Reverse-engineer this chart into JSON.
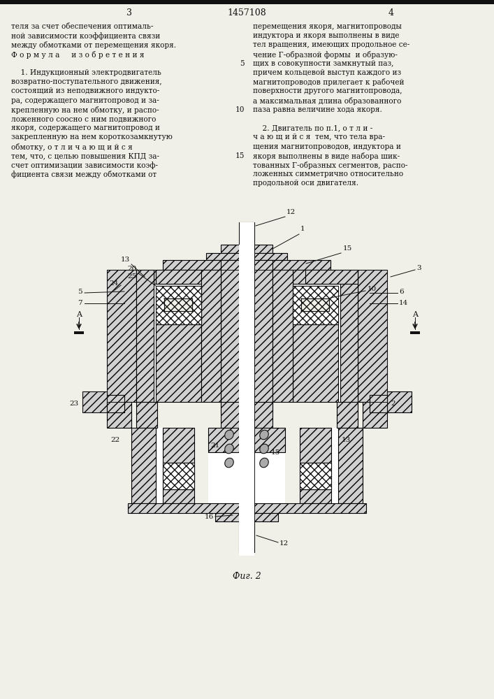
{
  "page_number_left": "3",
  "page_number_center": "1457108",
  "page_number_right": "4",
  "left_col_lines": [
    "теля за счет обеспечения оптималь-",
    "ной зависимости коэффициента связи",
    "между обмотками от перемещения якоря.",
    "Ф о р м у л а     и з о б р е т е н и я",
    "",
    "    1. Индукционный электродвигатель",
    "возвратно-поступательного движения,",
    "состоящий из неподвижного индукто-",
    "ра, содержащего магнитопровод и за-",
    "крепленную на нем обмотку, и распо-",
    "ложенного соосно с ним подвижного",
    "якоря, содержащего магнитопровод и",
    "закрепленную на нем короткозамкнутую",
    "обмотку, о т л и ч а ю щ и й с я",
    "тем, что, с целью повышения КПД за-",
    "счет оптимизации зависимости коэф-",
    "фициента связи между обмотками от"
  ],
  "right_col_lines": [
    "перемещения якоря, магнитопроводы",
    "индуктора и якоря выполнены в виде",
    "тел вращения, имеющих продольное се-",
    "чение Г-образной формы  и образую-",
    "щих в совокупности замкнутый паз,",
    "причем кольцевой выступ каждого из",
    "магнитопроводов прилегает к рабочей",
    "поверхности другого магнитопровода,",
    "а максимальная длина образованного",
    "паза равна величине хода якоря.",
    "",
    "    2. Двигатель по п.1, о т л и -",
    "ч а ю щ и й с я  тем, что тела вра-",
    "щения магнитопроводов, индуктора и",
    "якоря выполнены в виде набора шик-",
    "тованных Г-образных сегментов, распо-",
    "ложенных симметрично относительно",
    "продольной оси двигателя."
  ],
  "line_numbers": {
    "4": "5",
    "9": "10",
    "14": "15"
  },
  "fig_caption": "Фиг. 2",
  "bg_color": "#f0efe8",
  "text_color": "#111111",
  "line_color": "#111111",
  "hatch_color": "#111111"
}
